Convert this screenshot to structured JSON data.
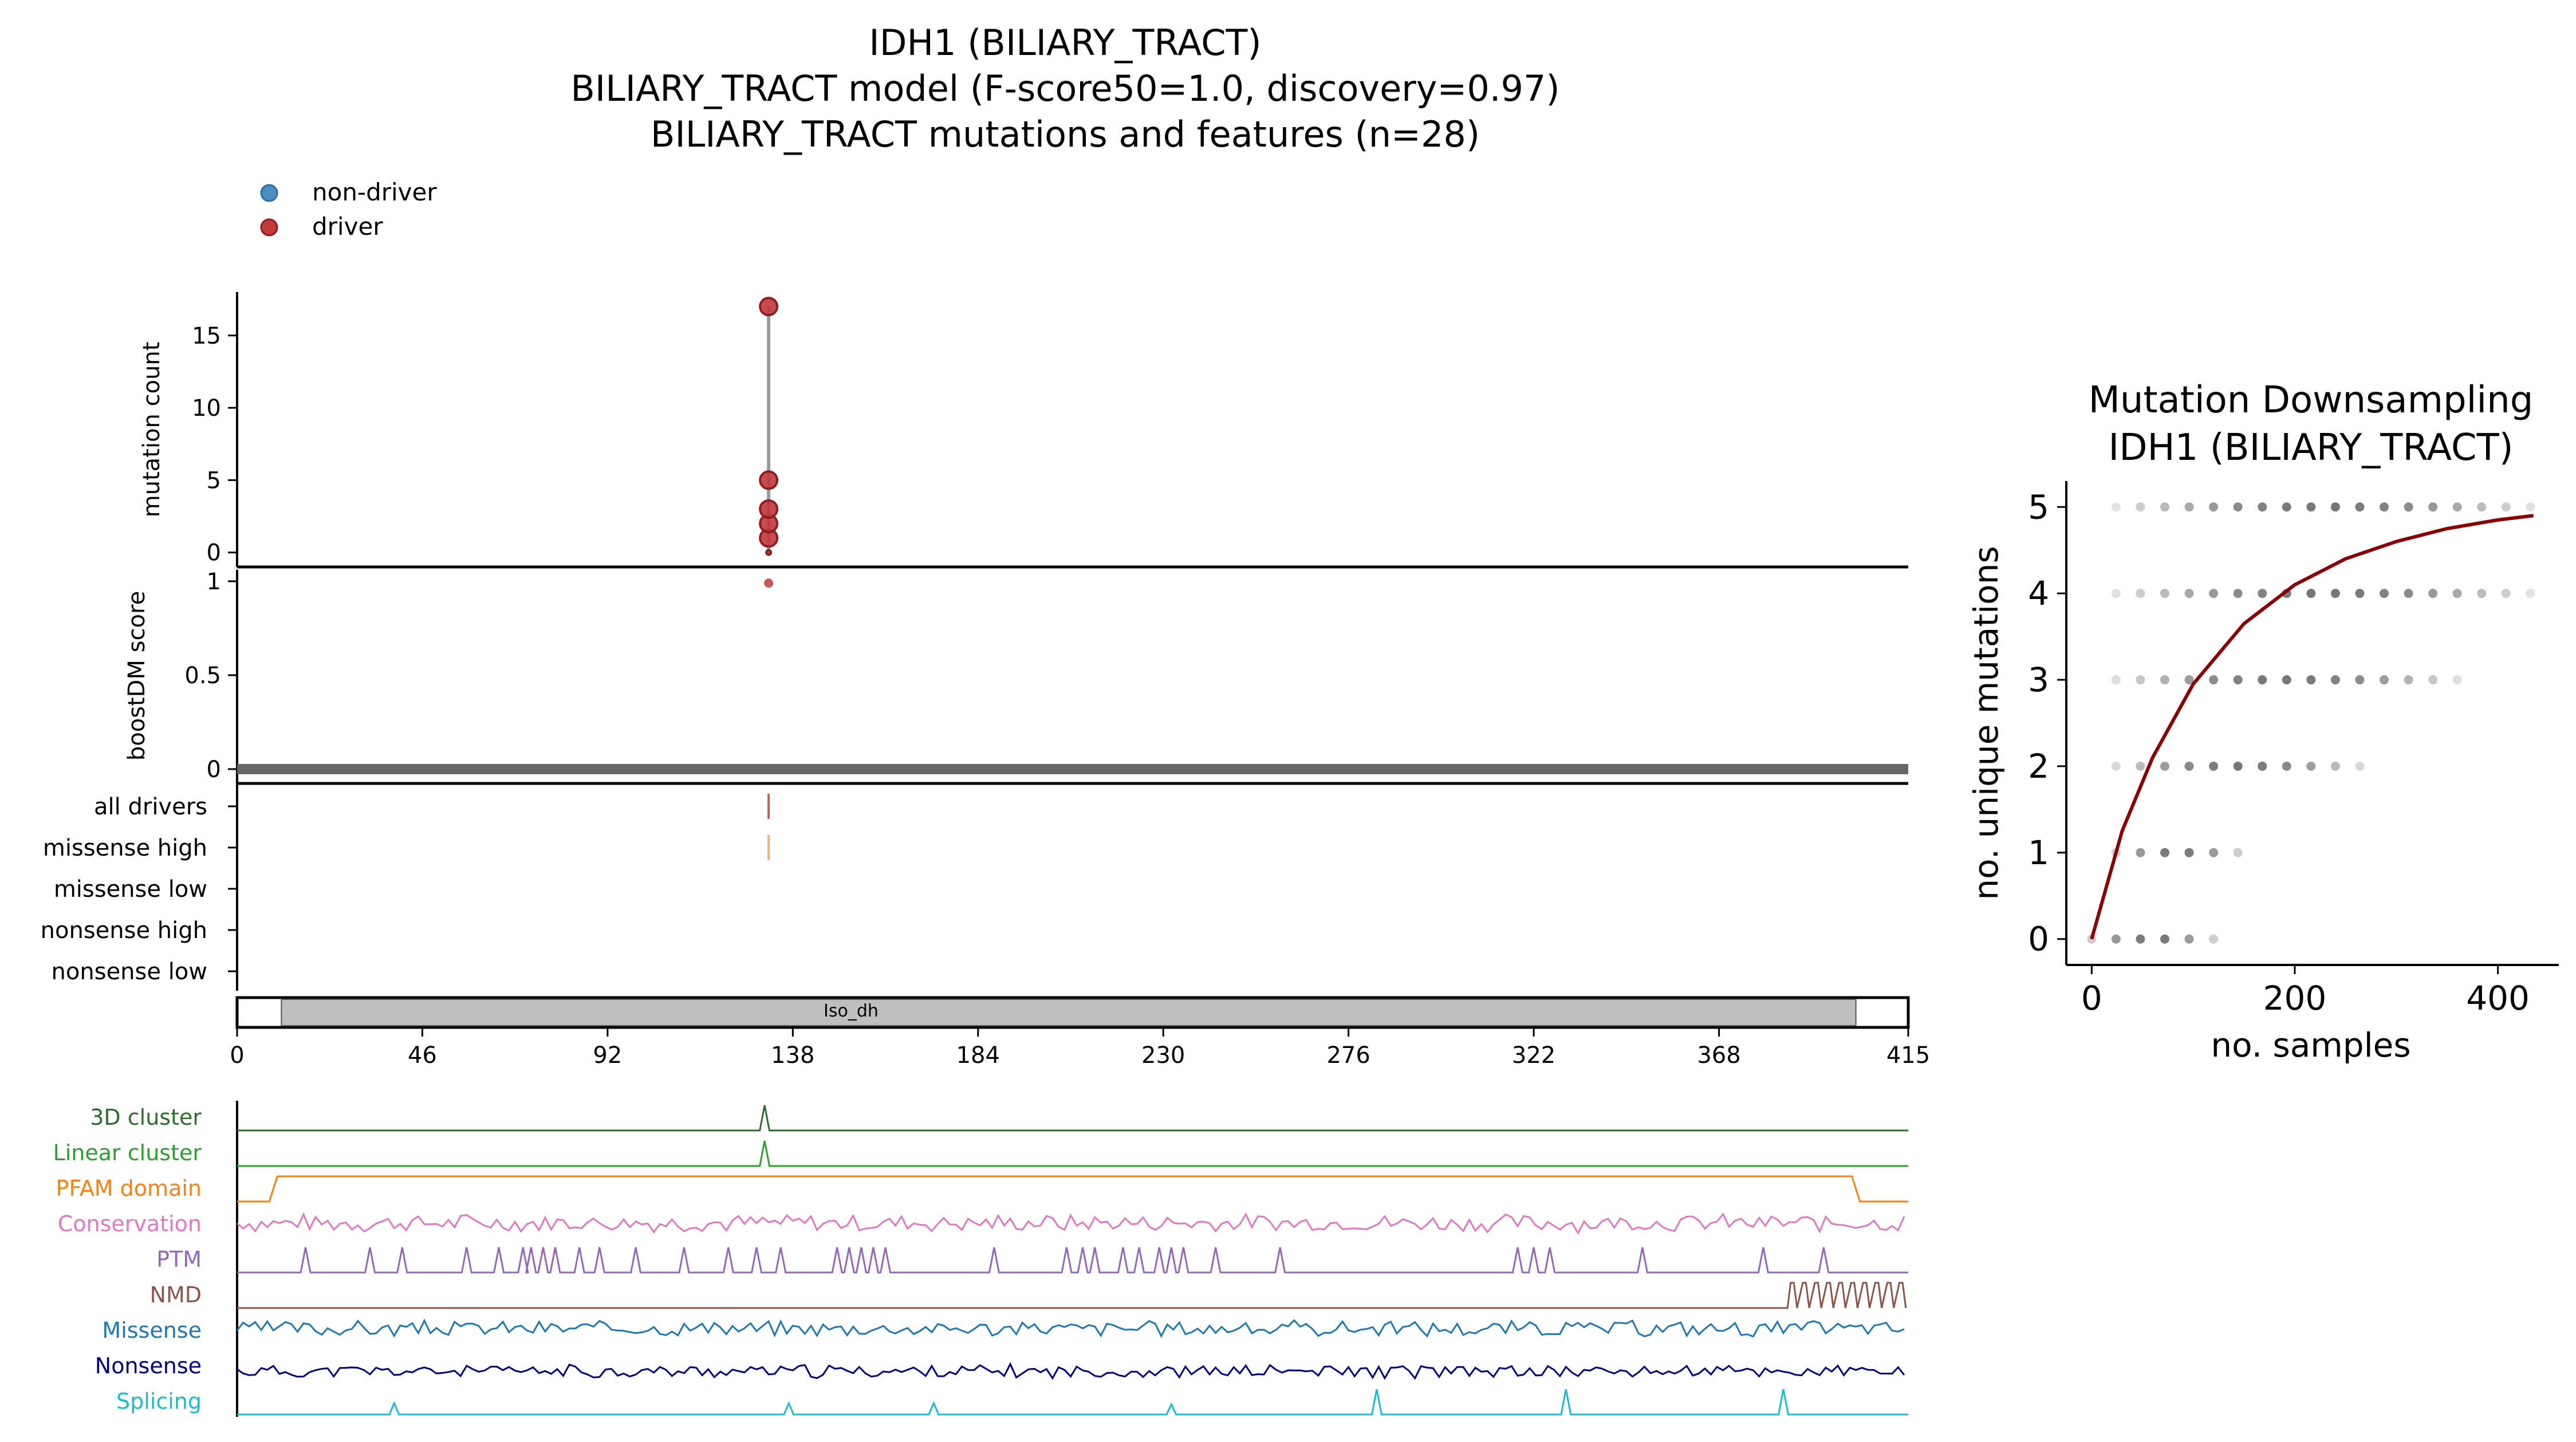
{
  "title_lines": [
    "IDH1 (BILIARY_TRACT)",
    "BILIARY_TRACT model (F-score50=1.0, discovery=0.97)",
    "BILIARY_TRACT mutations and features (n=28)"
  ],
  "legend": [
    {
      "label": "non-driver",
      "color": "#4a8fc2"
    },
    {
      "label": "driver",
      "color": "#c0393b"
    }
  ],
  "colors": {
    "driver": "#c0393b",
    "non_driver": "#4a8fc2",
    "stem": "#9a9a9a",
    "score_band": "#666666",
    "all_drivers": "#b3685a",
    "missense_high": "#e8b27a",
    "domain_fill": "#bfbfbf",
    "downsampling_curve": "#8b0000",
    "downsampling_points": "#777777"
  },
  "chart_data": [
    {
      "type": "scatter",
      "name": "mutation-count-panel",
      "ylabel": "mutation count",
      "ylim": [
        -1,
        18
      ],
      "yticks": [
        "0",
        "5",
        "10",
        "15"
      ],
      "ytick_values": [
        0,
        5,
        10,
        15
      ],
      "x": [
        132,
        132,
        132,
        132,
        132,
        132
      ],
      "y": [
        1,
        2,
        3,
        5,
        17,
        0
      ],
      "series": "driver",
      "stem_position": 132,
      "stem_range": [
        0,
        17
      ]
    },
    {
      "type": "scatter",
      "name": "boostdm-score-panel",
      "ylabel": "boostDM score",
      "ylim": [
        0,
        1
      ],
      "yticks": [
        "0",
        "0.5",
        "1"
      ],
      "ytick_values": [
        0,
        0.5,
        1
      ],
      "driver_points": [
        {
          "x": 132,
          "y": 0.99
        }
      ],
      "baseline_value": 0
    },
    {
      "type": "table",
      "name": "consequence-tracks",
      "rows": [
        "all drivers",
        "missense high",
        "missense low",
        "nonsense high",
        "nonsense low"
      ],
      "marks": [
        {
          "row": "all drivers",
          "x": 132
        },
        {
          "row": "missense high",
          "x": 132
        }
      ]
    },
    {
      "type": "bar",
      "name": "protein-domain-track",
      "domain_label": "Iso_dh",
      "domain_range": [
        11,
        402
      ],
      "xlim": [
        0,
        415
      ],
      "xticks": [
        "0",
        "46",
        "92",
        "138",
        "184",
        "230",
        "276",
        "322",
        "368",
        "415"
      ],
      "xtick_values": [
        0,
        46,
        92,
        138,
        184,
        230,
        276,
        322,
        368,
        415
      ]
    },
    {
      "type": "line",
      "name": "feature-tracks",
      "xlim": [
        0,
        415
      ],
      "tracks": [
        {
          "label": "3D cluster",
          "color": "#2e6b2e",
          "kind": "peaks",
          "peaks": [
            {
              "x": 131,
              "h": 1
            }
          ]
        },
        {
          "label": "Linear cluster",
          "color": "#2ca02c",
          "kind": "peaks",
          "peaks": [
            {
              "x": 131,
              "h": 1
            }
          ]
        },
        {
          "label": "PFAM domain",
          "color": "#ff7f0e",
          "kind": "step",
          "range": [
            10,
            401
          ]
        },
        {
          "label": "Conservation",
          "color": "#e377c2",
          "kind": "noise",
          "mean": 0.55,
          "amp": 0.4,
          "seed": 7
        },
        {
          "label": "PTM",
          "color": "#9467bd",
          "kind": "peaks",
          "peaks": [
            {
              "x": 17,
              "h": 1
            },
            {
              "x": 33,
              "h": 1
            },
            {
              "x": 41,
              "h": 1
            },
            {
              "x": 57,
              "h": 1
            },
            {
              "x": 65,
              "h": 1
            },
            {
              "x": 71,
              "h": 1
            },
            {
              "x": 73,
              "h": 1
            },
            {
              "x": 76,
              "h": 1
            },
            {
              "x": 79,
              "h": 1
            },
            {
              "x": 85,
              "h": 1
            },
            {
              "x": 90,
              "h": 1
            },
            {
              "x": 99,
              "h": 1
            },
            {
              "x": 111,
              "h": 1
            },
            {
              "x": 122,
              "h": 1
            },
            {
              "x": 129,
              "h": 1
            },
            {
              "x": 135,
              "h": 1
            },
            {
              "x": 149,
              "h": 1
            },
            {
              "x": 152,
              "h": 1
            },
            {
              "x": 155,
              "h": 1
            },
            {
              "x": 158,
              "h": 1
            },
            {
              "x": 161,
              "h": 1
            },
            {
              "x": 188,
              "h": 1
            },
            {
              "x": 206,
              "h": 1
            },
            {
              "x": 210,
              "h": 1
            },
            {
              "x": 213,
              "h": 1
            },
            {
              "x": 220,
              "h": 1
            },
            {
              "x": 224,
              "h": 1
            },
            {
              "x": 229,
              "h": 1
            },
            {
              "x": 232,
              "h": 1
            },
            {
              "x": 235,
              "h": 1
            },
            {
              "x": 243,
              "h": 1
            },
            {
              "x": 259,
              "h": 1
            },
            {
              "x": 318,
              "h": 1
            },
            {
              "x": 322,
              "h": 1
            },
            {
              "x": 326,
              "h": 1
            },
            {
              "x": 349,
              "h": 1
            },
            {
              "x": 379,
              "h": 1
            },
            {
              "x": 394,
              "h": 1
            }
          ]
        },
        {
          "label": "NMD",
          "color": "#8c564b",
          "kind": "zigzag",
          "start": 385
        },
        {
          "label": "Missense",
          "color": "#1f77b4",
          "kind": "noise",
          "mean": 0.6,
          "amp": 0.35,
          "seed": 3
        },
        {
          "label": "Nonsense",
          "color": "#000080",
          "kind": "noise",
          "mean": 0.3,
          "amp": 0.3,
          "seed": 11
        },
        {
          "label": "Splicing",
          "color": "#17becf",
          "kind": "peaks",
          "peaks": [
            {
              "x": 39,
              "h": 0.45
            },
            {
              "x": 137,
              "h": 0.45
            },
            {
              "x": 173,
              "h": 0.45
            },
            {
              "x": 232,
              "h": 0.4
            },
            {
              "x": 283,
              "h": 1
            },
            {
              "x": 330,
              "h": 1
            },
            {
              "x": 384,
              "h": 1
            }
          ]
        }
      ]
    },
    {
      "type": "scatter",
      "name": "mutation-downsampling",
      "title_lines": [
        "Mutation Downsampling",
        "IDH1 (BILIARY_TRACT)"
      ],
      "xlabel": "no. samples",
      "ylabel": "no. unique mutations",
      "xlim": [
        -25,
        460
      ],
      "ylim": [
        -0.3,
        5.3
      ],
      "xticks": [
        "0",
        "200",
        "400"
      ],
      "xtick_values": [
        0,
        200,
        400
      ],
      "yticks": [
        "0",
        "1",
        "2",
        "3",
        "4",
        "5"
      ],
      "ytick_values": [
        0,
        1,
        2,
        3,
        4,
        5
      ],
      "point_levels": [
        {
          "y": 0,
          "x": [
            0,
            24,
            48,
            72,
            96,
            120
          ]
        },
        {
          "y": 1,
          "x": [
            24,
            48,
            72,
            96,
            120,
            144
          ]
        },
        {
          "y": 2,
          "x": [
            24,
            48,
            72,
            96,
            120,
            144,
            168,
            192,
            216,
            240,
            264
          ]
        },
        {
          "y": 3,
          "x": [
            24,
            48,
            72,
            96,
            120,
            144,
            168,
            192,
            216,
            240,
            264,
            288,
            312,
            336,
            360
          ]
        },
        {
          "y": 4,
          "x": [
            24,
            48,
            72,
            96,
            120,
            144,
            168,
            192,
            216,
            240,
            264,
            288,
            312,
            336,
            360,
            384,
            408,
            432
          ]
        },
        {
          "y": 5,
          "x": [
            24,
            48,
            72,
            96,
            120,
            144,
            168,
            192,
            216,
            240,
            264,
            288,
            312,
            336,
            360,
            384,
            408,
            432
          ]
        }
      ],
      "curve": {
        "x": [
          0,
          30,
          60,
          100,
          150,
          200,
          250,
          300,
          350,
          400,
          435
        ],
        "y": [
          0,
          1.25,
          2.1,
          2.95,
          3.65,
          4.1,
          4.4,
          4.6,
          4.75,
          4.85,
          4.9
        ]
      }
    }
  ]
}
